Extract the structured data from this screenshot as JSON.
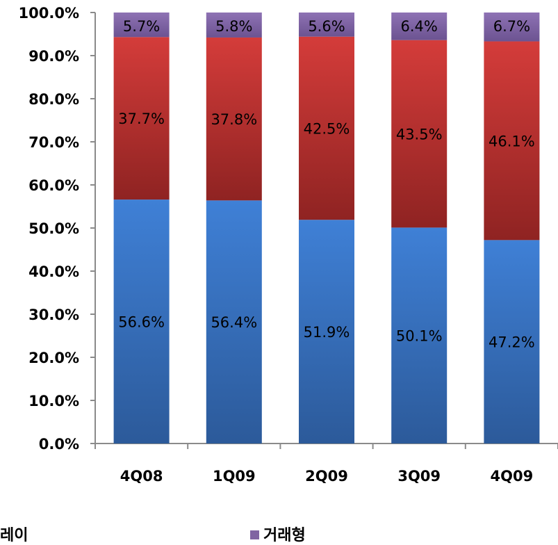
{
  "chart_data": {
    "type": "bar",
    "stacked": true,
    "categories": [
      "4Q08",
      "1Q09",
      "2Q09",
      "3Q09",
      "4Q09"
    ],
    "series": [
      {
        "name": "",
        "color": "#3b73c4",
        "values": [
          56.6,
          56.4,
          51.9,
          50.1,
          47.2
        ]
      },
      {
        "name": "",
        "color": "#c93a38",
        "values": [
          37.7,
          37.8,
          42.5,
          43.5,
          46.1
        ]
      },
      {
        "name": "거래형",
        "color": "#8064a2",
        "values": [
          5.7,
          5.8,
          5.6,
          6.4,
          6.7
        ]
      }
    ],
    "data_labels": [
      [
        "56.6%",
        "56.4%",
        "51.9%",
        "50.1%",
        "47.2%"
      ],
      [
        "37.7%",
        "37.8%",
        "42.5%",
        "43.5%",
        "46.1%"
      ],
      [
        "5.7%",
        "5.8%",
        "5.6%",
        "6.4%",
        "6.7%"
      ]
    ],
    "yticks": [
      "0.0%",
      "10.0%",
      "20.0%",
      "30.0%",
      "40.0%",
      "50.0%",
      "60.0%",
      "70.0%",
      "80.0%",
      "90.0%",
      "100.0%"
    ],
    "ylim": [
      0,
      100
    ],
    "grid": false,
    "legend_position": "bottom"
  },
  "legend": {
    "partial_label": "레이",
    "label": "거래형",
    "color": "#8064a2"
  }
}
